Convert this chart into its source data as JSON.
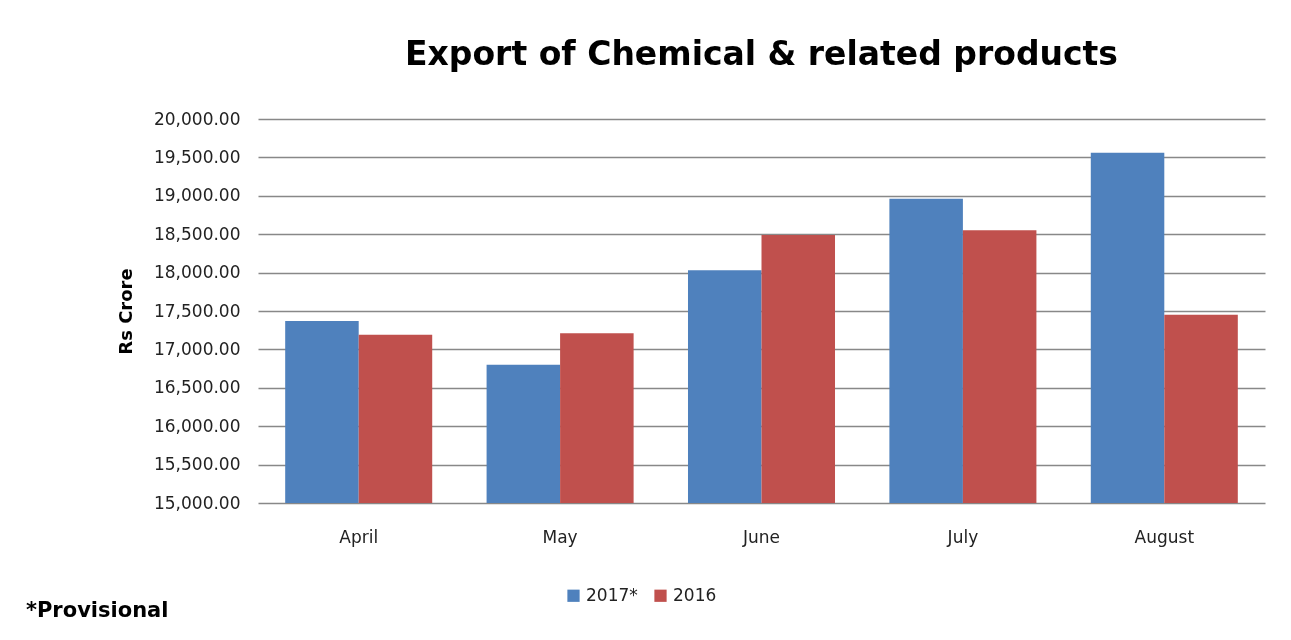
{
  "chart_data": {
    "type": "bar",
    "title": "Export of Chemical & related products",
    "ylabel": "Rs Crore",
    "categories": [
      "April",
      "May",
      "June",
      "July",
      "August"
    ],
    "series": [
      {
        "name": "2017*",
        "color": "#4f81bd",
        "values": [
          17370,
          16800,
          18030,
          18960,
          19560
        ]
      },
      {
        "name": "2016",
        "color": "#c0504d",
        "values": [
          17190,
          17210,
          18490,
          18550,
          17450
        ]
      }
    ],
    "ylim": [
      15000,
      20000
    ],
    "yticks": [
      {
        "value": 15000,
        "label": "15,000.00"
      },
      {
        "value": 15500,
        "label": "15,500.00"
      },
      {
        "value": 16000,
        "label": "16,000.00"
      },
      {
        "value": 16500,
        "label": "16,500.00"
      },
      {
        "value": 17000,
        "label": "17,000.00"
      },
      {
        "value": 17500,
        "label": "17,500.00"
      },
      {
        "value": 18000,
        "label": "18,000.00"
      },
      {
        "value": 18500,
        "label": "18,500.00"
      },
      {
        "value": 19000,
        "label": "19,000.00"
      },
      {
        "value": 19500,
        "label": "19,500.00"
      },
      {
        "value": 20000,
        "label": "20,000.00"
      }
    ],
    "grid": "y",
    "legend": "bottom",
    "annotations": [
      "*Provisional"
    ]
  }
}
